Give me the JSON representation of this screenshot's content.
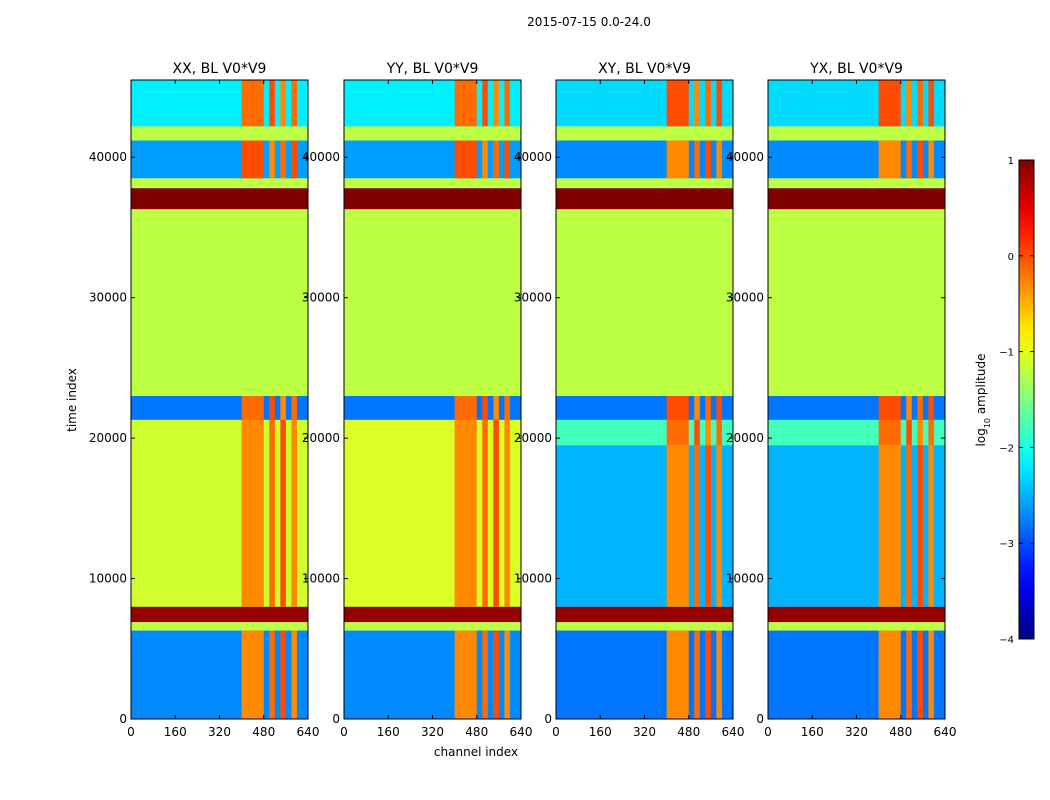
{
  "chart_data": {
    "type": "heatmap",
    "title": "2015-07-15 0.0-24.0",
    "xlabel": "channel index",
    "ylabel": "time index",
    "xlim": [
      0,
      640
    ],
    "ylim": [
      0,
      45500
    ],
    "x_ticks": [
      0,
      160,
      320,
      480,
      640
    ],
    "y_ticks": [
      0,
      10000,
      20000,
      30000,
      40000
    ],
    "panels": [
      {
        "title": "XX, BL V0*V9",
        "blocks": [
          {
            "t0": 0,
            "t1": 6300,
            "level": -2.7,
            "rfi": true
          },
          {
            "t0": 6300,
            "t1": 6900,
            "level": -1.2,
            "rfi": false
          },
          {
            "t0": 6900,
            "t1": 8000,
            "level": 0.9,
            "rfi": false
          },
          {
            "t0": 8000,
            "t1": 21300,
            "level": -1.1,
            "rfi": true
          },
          {
            "t0": 21300,
            "t1": 23000,
            "level": -2.8,
            "rfi": true
          },
          {
            "t0": 23000,
            "t1": 36300,
            "level": -1.2,
            "rfi": false
          },
          {
            "t0": 36300,
            "t1": 37800,
            "level": 1.0,
            "rfi": false
          },
          {
            "t0": 37800,
            "t1": 38500,
            "level": -1.2,
            "rfi": false
          },
          {
            "t0": 38500,
            "t1": 41200,
            "level": -2.6,
            "rfi": true
          },
          {
            "t0": 41200,
            "t1": 42200,
            "level": -1.2,
            "rfi": false
          },
          {
            "t0": 42200,
            "t1": 45500,
            "level": -2.2,
            "rfi": true
          }
        ]
      },
      {
        "title": "YY, BL V0*V9",
        "blocks": [
          {
            "t0": 0,
            "t1": 6300,
            "level": -2.7,
            "rfi": true
          },
          {
            "t0": 6300,
            "t1": 6900,
            "level": -1.2,
            "rfi": false
          },
          {
            "t0": 6900,
            "t1": 8000,
            "level": 0.9,
            "rfi": false
          },
          {
            "t0": 8000,
            "t1": 21300,
            "level": -1.05,
            "rfi": true
          },
          {
            "t0": 21300,
            "t1": 23000,
            "level": -2.8,
            "rfi": true
          },
          {
            "t0": 23000,
            "t1": 36300,
            "level": -1.2,
            "rfi": false
          },
          {
            "t0": 36300,
            "t1": 37800,
            "level": 1.0,
            "rfi": false
          },
          {
            "t0": 37800,
            "t1": 38500,
            "level": -1.2,
            "rfi": false
          },
          {
            "t0": 38500,
            "t1": 41200,
            "level": -2.6,
            "rfi": true
          },
          {
            "t0": 41200,
            "t1": 42200,
            "level": -1.2,
            "rfi": false
          },
          {
            "t0": 42200,
            "t1": 45500,
            "level": -2.2,
            "rfi": true
          }
        ]
      },
      {
        "title": "XY, BL V0*V9",
        "blocks": [
          {
            "t0": 0,
            "t1": 6300,
            "level": -2.8,
            "rfi": true
          },
          {
            "t0": 6300,
            "t1": 6900,
            "level": -1.2,
            "rfi": false
          },
          {
            "t0": 6900,
            "t1": 8000,
            "level": 0.9,
            "rfi": false
          },
          {
            "t0": 8000,
            "t1": 19500,
            "level": -2.5,
            "rfi": true
          },
          {
            "t0": 19500,
            "t1": 21300,
            "level": -1.8,
            "rfi": true
          },
          {
            "t0": 21300,
            "t1": 23000,
            "level": -2.8,
            "rfi": true
          },
          {
            "t0": 23000,
            "t1": 36300,
            "level": -1.2,
            "rfi": false
          },
          {
            "t0": 36300,
            "t1": 37800,
            "level": 1.0,
            "rfi": false
          },
          {
            "t0": 37800,
            "t1": 38500,
            "level": -1.2,
            "rfi": false
          },
          {
            "t0": 38500,
            "t1": 41200,
            "level": -2.7,
            "rfi": true
          },
          {
            "t0": 41200,
            "t1": 42200,
            "level": -1.2,
            "rfi": false
          },
          {
            "t0": 42200,
            "t1": 45500,
            "level": -2.3,
            "rfi": true
          }
        ]
      },
      {
        "title": "YX, BL V0*V9",
        "blocks": [
          {
            "t0": 0,
            "t1": 6300,
            "level": -2.8,
            "rfi": true
          },
          {
            "t0": 6300,
            "t1": 6900,
            "level": -1.2,
            "rfi": false
          },
          {
            "t0": 6900,
            "t1": 8000,
            "level": 0.9,
            "rfi": false
          },
          {
            "t0": 8000,
            "t1": 19500,
            "level": -2.5,
            "rfi": true
          },
          {
            "t0": 19500,
            "t1": 21300,
            "level": -1.8,
            "rfi": true
          },
          {
            "t0": 21300,
            "t1": 23000,
            "level": -2.8,
            "rfi": true
          },
          {
            "t0": 23000,
            "t1": 36300,
            "level": -1.2,
            "rfi": false
          },
          {
            "t0": 36300,
            "t1": 37800,
            "level": 1.0,
            "rfi": false
          },
          {
            "t0": 37800,
            "t1": 38500,
            "level": -1.2,
            "rfi": false
          },
          {
            "t0": 38500,
            "t1": 41200,
            "level": -2.7,
            "rfi": true
          },
          {
            "t0": 41200,
            "t1": 42200,
            "level": -1.2,
            "rfi": false
          },
          {
            "t0": 42200,
            "t1": 45500,
            "level": -2.3,
            "rfi": true
          }
        ]
      }
    ],
    "rfi_channels": [
      [
        400,
        480
      ],
      [
        500,
        520
      ],
      [
        540,
        560
      ],
      [
        580,
        600
      ]
    ],
    "colorbar": {
      "label_prefix": "log",
      "label_sub": "10",
      "label_suffix": " amplitude",
      "range": [
        -4,
        1
      ],
      "ticks": [
        -4,
        -3,
        -2,
        -1,
        0,
        1
      ],
      "tick_labels": [
        "−4",
        "−3",
        "−2",
        "−1",
        "0",
        "1"
      ],
      "colormap": "jet"
    }
  }
}
